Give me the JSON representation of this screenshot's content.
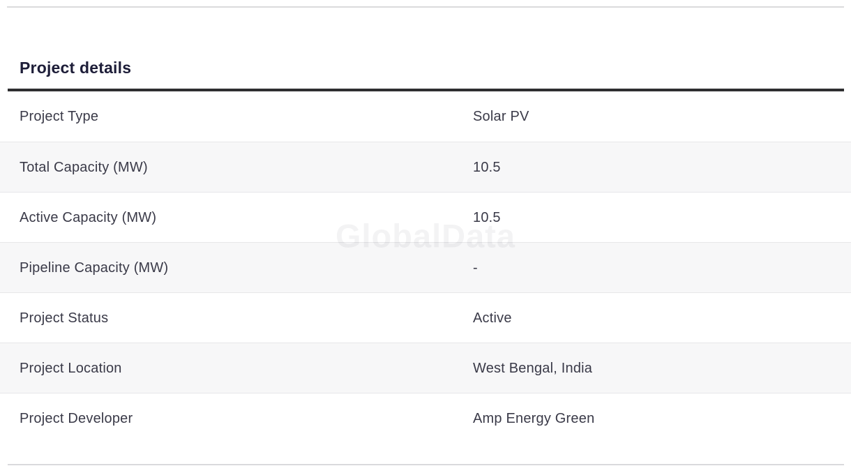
{
  "section": {
    "title": "Project details"
  },
  "table": {
    "rows": [
      {
        "label": "Project Type",
        "value": "Solar PV"
      },
      {
        "label": "Total Capacity (MW)",
        "value": "10.5"
      },
      {
        "label": "Active Capacity (MW)",
        "value": "10.5"
      },
      {
        "label": "Pipeline Capacity (MW)",
        "value": "-"
      },
      {
        "label": "Project Status",
        "value": "Active"
      },
      {
        "label": "Project Location",
        "value": "West Bengal, India"
      },
      {
        "label": "Project Developer",
        "value": "Amp Energy Green"
      }
    ]
  },
  "watermark": {
    "text": "GlobalData"
  },
  "colors": {
    "heading_text": "#1d1d38",
    "body_text": "#3a3a48",
    "row_alt_bg": "#f7f7f8",
    "row_border": "#e7e7e9",
    "section_divider": "#dadadc",
    "title_rule": "#2e2e30",
    "watermark_text": "rgba(30,30,50,0.055)"
  }
}
